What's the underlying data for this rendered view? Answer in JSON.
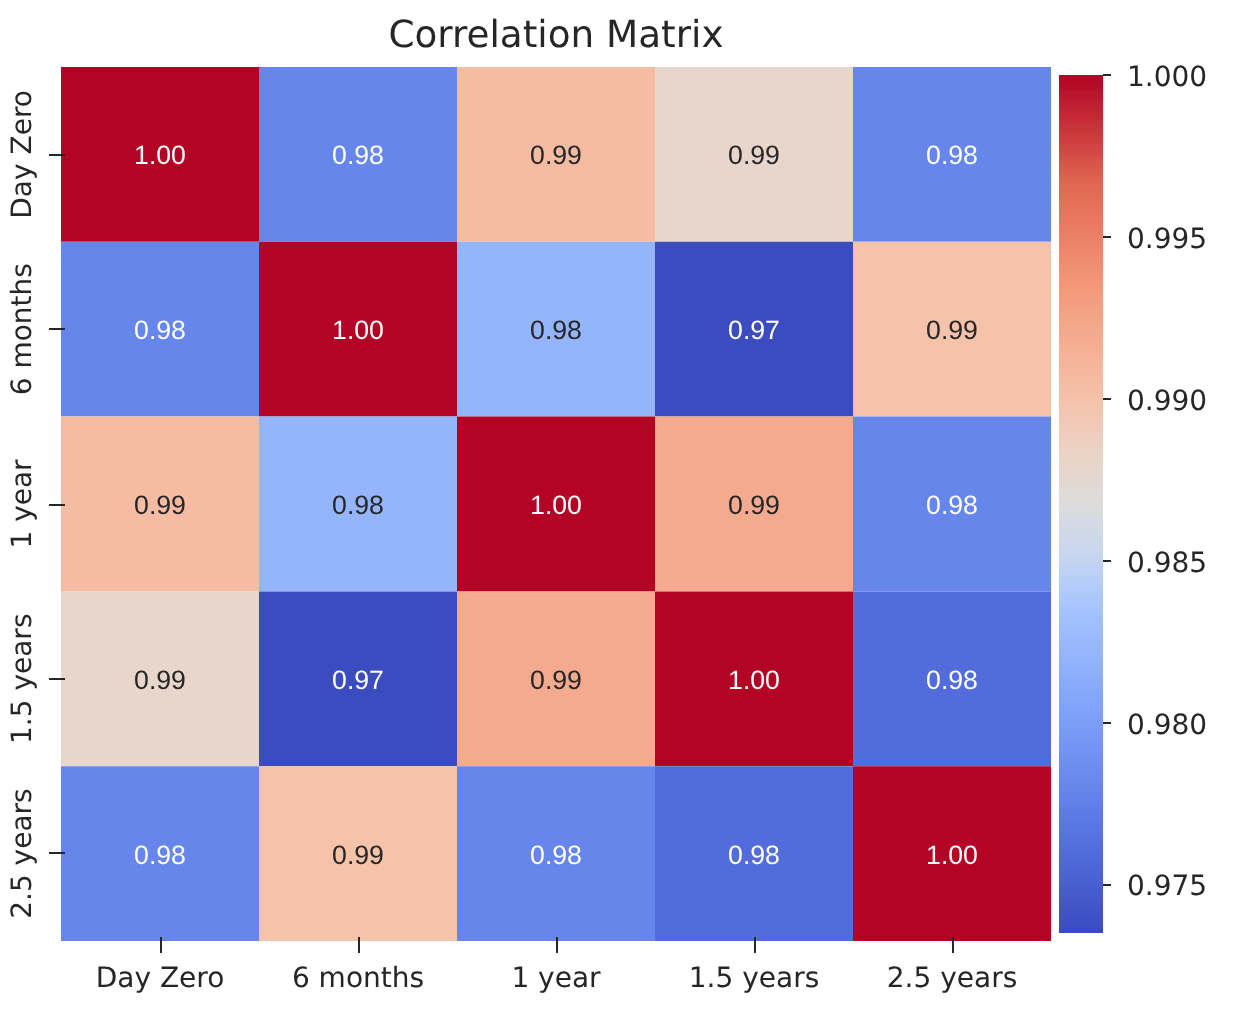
{
  "chart_data": {
    "type": "heatmap",
    "title": "Correlation Matrix",
    "categories": [
      "Day Zero",
      "6 months",
      "1 year",
      "1.5 years",
      "2.5 years"
    ],
    "y_categories": [
      "Day Zero",
      "6 months",
      "1 year",
      "1.5 years",
      "2.5 years"
    ],
    "cells": [
      [
        1.0,
        0.978,
        0.9905,
        0.988,
        0.978
      ],
      [
        0.978,
        1.0,
        0.982,
        0.9735,
        0.99
      ],
      [
        0.9905,
        0.982,
        1.0,
        0.992,
        0.978
      ],
      [
        0.988,
        0.9735,
        0.992,
        1.0,
        0.976
      ],
      [
        0.978,
        0.99,
        0.978,
        0.976,
        1.0
      ]
    ],
    "cell_labels": [
      [
        "1.00",
        "0.98",
        "0.99",
        "0.99",
        "0.98"
      ],
      [
        "0.98",
        "1.00",
        "0.98",
        "0.97",
        "0.99"
      ],
      [
        "0.99",
        "0.98",
        "1.00",
        "0.99",
        "0.98"
      ],
      [
        "0.99",
        "0.97",
        "0.99",
        "1.00",
        "0.98"
      ],
      [
        "0.98",
        "0.99",
        "0.98",
        "0.98",
        "1.00"
      ]
    ],
    "clim": [
      0.9735,
      1.0
    ],
    "cticks": [
      0.975,
      {
        "value": 0.98,
        "label": "0.980"
      },
      0.985,
      {
        "value": 0.99,
        "label": "0.990"
      },
      0.995,
      {
        "value": 1.0,
        "label": "1.000"
      }
    ]
  }
}
